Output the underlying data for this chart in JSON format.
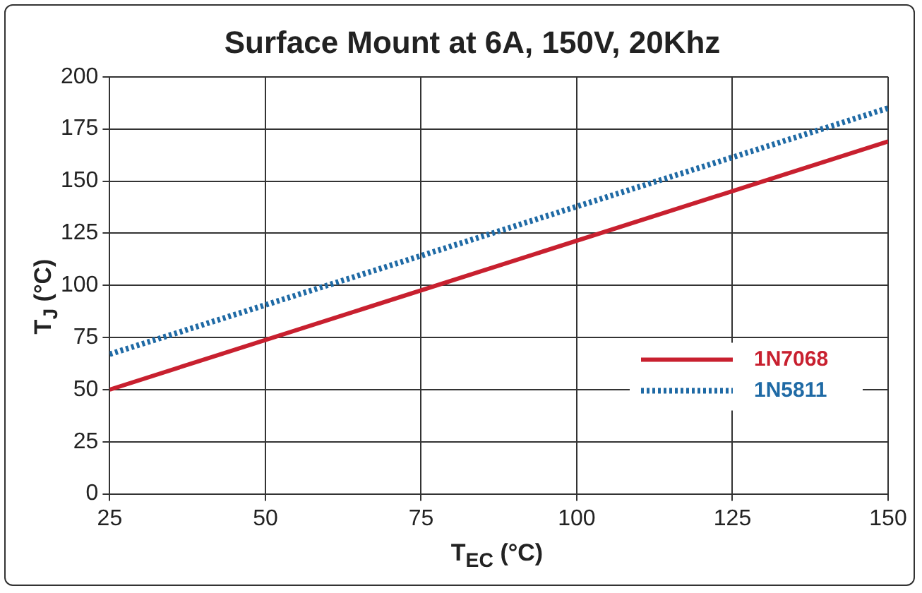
{
  "chart_data": {
    "type": "line",
    "title": "Surface Mount at 6A, 150V, 20Khz",
    "xlabel": "T$_{EC}$  (°C)",
    "ylabel": "T$_{J}$ (°C)",
    "x": [
      25,
      150
    ],
    "series": [
      {
        "name": "1N7068",
        "color": "#c8202f",
        "line_style": "solid",
        "values": [
          50,
          169
        ]
      },
      {
        "name": "1N5811",
        "color": "#1f6aa5",
        "line_style": "dotted",
        "values": [
          67,
          185
        ]
      }
    ],
    "xlim": [
      25,
      150
    ],
    "xticks": [
      25,
      50,
      75,
      100,
      125,
      150
    ],
    "ylim": [
      0,
      200
    ],
    "yticks": [
      0,
      25,
      50,
      75,
      100,
      125,
      150,
      175,
      200
    ],
    "grid": true,
    "legend": "bottom right",
    "marker": "none"
  }
}
